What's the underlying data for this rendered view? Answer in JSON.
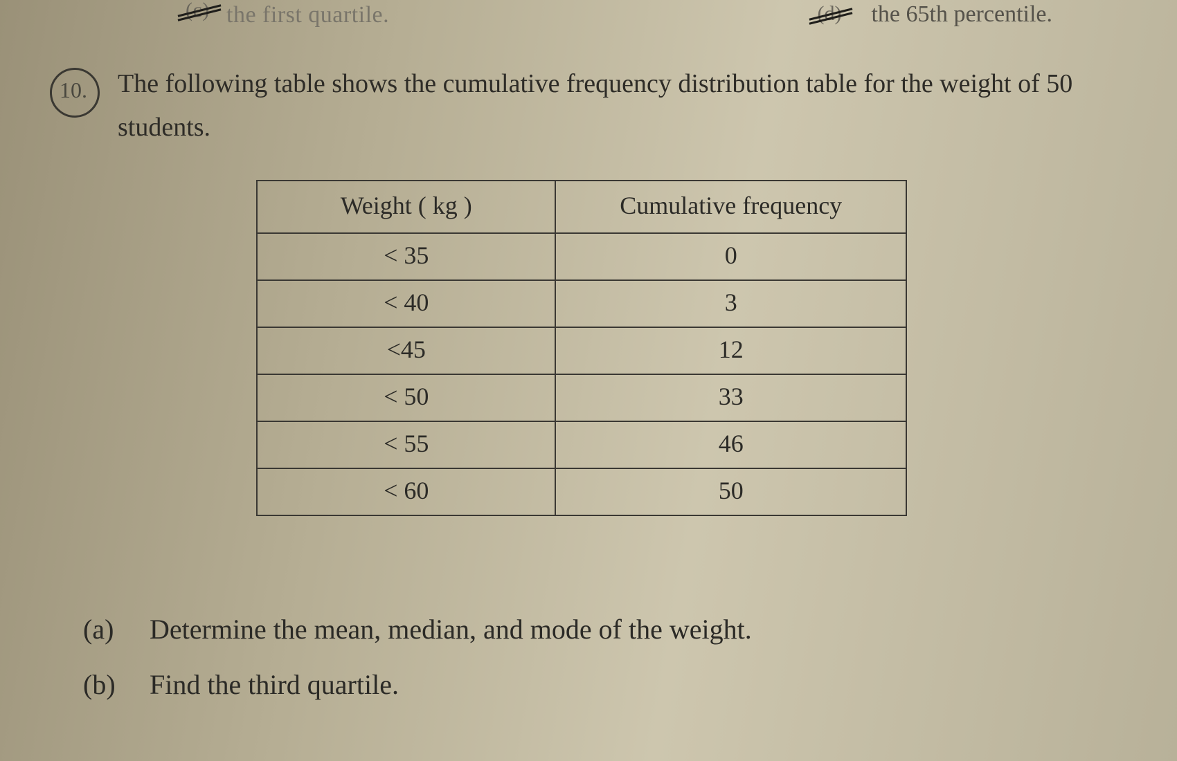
{
  "top": {
    "left_letter": "(c)",
    "left_text": "the first quartile.",
    "right_letter": "(d)",
    "right_text": "the 65th percentile."
  },
  "question": {
    "number": "10.",
    "text": "The following table shows the cumulative frequency distribution table for the weight of 50 students."
  },
  "table": {
    "type": "table",
    "columns": [
      "Weight ( kg )",
      "Cumulative frequency"
    ],
    "rows": [
      [
        "< 35",
        "0"
      ],
      [
        "< 40",
        "3"
      ],
      [
        "<45",
        "12"
      ],
      [
        "< 50",
        "33"
      ],
      [
        "< 55",
        "46"
      ],
      [
        "< 60",
        "50"
      ]
    ],
    "border_color": "#3a3833",
    "font_size_pt": 27,
    "text_color": "#2c2b27",
    "col_widths_pct": [
      46,
      54
    ]
  },
  "parts": {
    "a": {
      "label": "(a)",
      "text": "Determine the mean, median, and mode of the weight."
    },
    "b": {
      "label": "(b)",
      "text": "Find the third quartile."
    }
  },
  "style": {
    "background_gradient": [
      "#9a9178",
      "#b5ad93",
      "#cdc6ae",
      "#b8b199"
    ],
    "font_family": "Times New Roman",
    "body_text_color": "#2a2a28"
  }
}
